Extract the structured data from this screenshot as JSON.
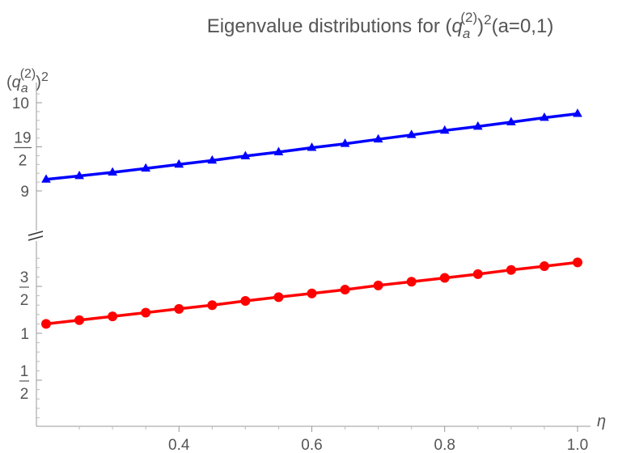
{
  "chart_data": {
    "type": "line",
    "title": {
      "prefix": "Eigenvalue distributions for (",
      "base": "q",
      "superscript": "(2)",
      "subscript": "a",
      "suffix_power": "2",
      "suffix": "(a=0,1)"
    },
    "ylabel": {
      "base": "q",
      "superscript": "(2)",
      "subscript": "a",
      "power": "2"
    },
    "xlabel": "η",
    "x_ticks": [
      "0.4",
      "0.6",
      "0.8",
      "1.0"
    ],
    "x_tick_values": [
      0.4,
      0.6,
      0.8,
      1.0
    ],
    "xlim": [
      0.2,
      1.0
    ],
    "y_break": true,
    "upper_panel": {
      "ylim": [
        8.75,
        10.2
      ],
      "ticks": [
        {
          "value": 10,
          "label": "10"
        },
        {
          "value": 9.5,
          "num": "19",
          "den": "2"
        },
        {
          "value": 9,
          "label": "9"
        }
      ]
    },
    "lower_panel": {
      "ylim": [
        0,
        1.95
      ],
      "ticks": [
        {
          "value": 1.5,
          "num": "3",
          "den": "2"
        },
        {
          "value": 1,
          "label": "1"
        },
        {
          "value": 0.5,
          "num": "1",
          "den": "2"
        }
      ]
    },
    "x": [
      0.2,
      0.25,
      0.3,
      0.35,
      0.4,
      0.45,
      0.5,
      0.55,
      0.6,
      0.65,
      0.7,
      0.75,
      0.8,
      0.85,
      0.9,
      0.95,
      1.0
    ],
    "series": [
      {
        "panel": "upper",
        "marker": "triangle",
        "color": "#0000ff",
        "values": [
          9.13,
          9.17,
          9.21,
          9.255,
          9.3,
          9.345,
          9.395,
          9.44,
          9.49,
          9.535,
          9.585,
          9.635,
          9.685,
          9.73,
          9.78,
          9.83,
          9.875
        ]
      },
      {
        "panel": "lower",
        "marker": "circle",
        "color": "#ff0000",
        "values": [
          1.1,
          1.14,
          1.18,
          1.22,
          1.26,
          1.3,
          1.345,
          1.385,
          1.425,
          1.465,
          1.51,
          1.55,
          1.59,
          1.63,
          1.675,
          1.715,
          1.755
        ]
      }
    ]
  }
}
